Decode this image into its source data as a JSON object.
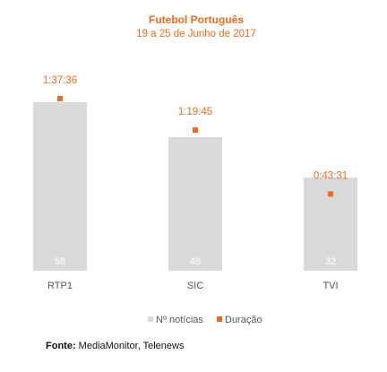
{
  "chart_data": {
    "type": "bar",
    "title": "Futebol Português",
    "subtitle": "19 a 25 de Junho de 2017",
    "categories": [
      "RTP1",
      "SIC",
      "TVI"
    ],
    "series": [
      {
        "name": "Nº notícias",
        "type": "bar",
        "values": [
          58,
          46,
          32
        ],
        "color": "#D9D9D9"
      },
      {
        "name": "Duração",
        "type": "scatter",
        "values": [
          "1:37:36",
          "1:19:45",
          "0:43:31"
        ],
        "seconds": [
          5856,
          4785,
          2611
        ],
        "color": "#ED6D1F"
      }
    ],
    "legend_position": "bottom",
    "grid": false
  },
  "source": {
    "label": "Fonte:",
    "text": "MediaMonitor, Telenews"
  }
}
